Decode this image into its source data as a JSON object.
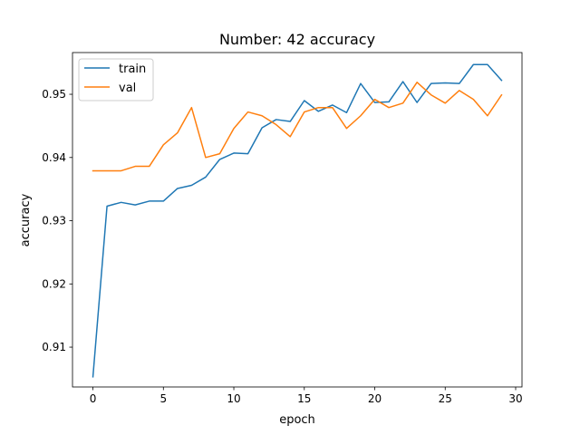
{
  "chart_data": {
    "type": "line",
    "title": "Number: 42 accuracy",
    "xlabel": "epoch",
    "ylabel": "accuracy",
    "xlim": [
      -1.45,
      30.45
    ],
    "ylim": [
      0.9037,
      0.9566
    ],
    "x_ticks": [
      0,
      5,
      10,
      15,
      20,
      25,
      30
    ],
    "y_ticks": [
      0.91,
      0.92,
      0.93,
      0.94,
      0.95
    ],
    "x_tick_labels": [
      "0",
      "5",
      "10",
      "15",
      "20",
      "25",
      "30"
    ],
    "y_tick_labels": [
      "0.91",
      "0.92",
      "0.93",
      "0.94",
      "0.95"
    ],
    "grid": false,
    "legend_position": "top-left",
    "x": [
      0,
      1,
      2,
      3,
      4,
      5,
      6,
      7,
      8,
      9,
      10,
      11,
      12,
      13,
      14,
      15,
      16,
      17,
      18,
      19,
      20,
      21,
      22,
      23,
      24,
      25,
      26,
      27,
      28,
      29
    ],
    "series": [
      {
        "name": "train",
        "color": "#1f77b4",
        "values": [
          0.9053,
          0.9323,
          0.9329,
          0.9325,
          0.9331,
          0.9331,
          0.9351,
          0.9356,
          0.9369,
          0.9397,
          0.9407,
          0.9406,
          0.9447,
          0.946,
          0.9457,
          0.949,
          0.9473,
          0.9483,
          0.9471,
          0.9517,
          0.9487,
          0.9488,
          0.952,
          0.9487,
          0.9517,
          0.9518,
          0.9517,
          0.9547,
          0.9547,
          0.9522
        ]
      },
      {
        "name": "val",
        "color": "#ff7f0e",
        "values": [
          0.9379,
          0.9379,
          0.9379,
          0.9386,
          0.9386,
          0.942,
          0.9439,
          0.9479,
          0.94,
          0.9406,
          0.9446,
          0.9472,
          0.9466,
          0.9452,
          0.9433,
          0.9472,
          0.9479,
          0.9479,
          0.9446,
          0.9466,
          0.9492,
          0.9479,
          0.9486,
          0.9519,
          0.9499,
          0.9486,
          0.9506,
          0.9492,
          0.9466,
          0.9499
        ]
      }
    ]
  }
}
